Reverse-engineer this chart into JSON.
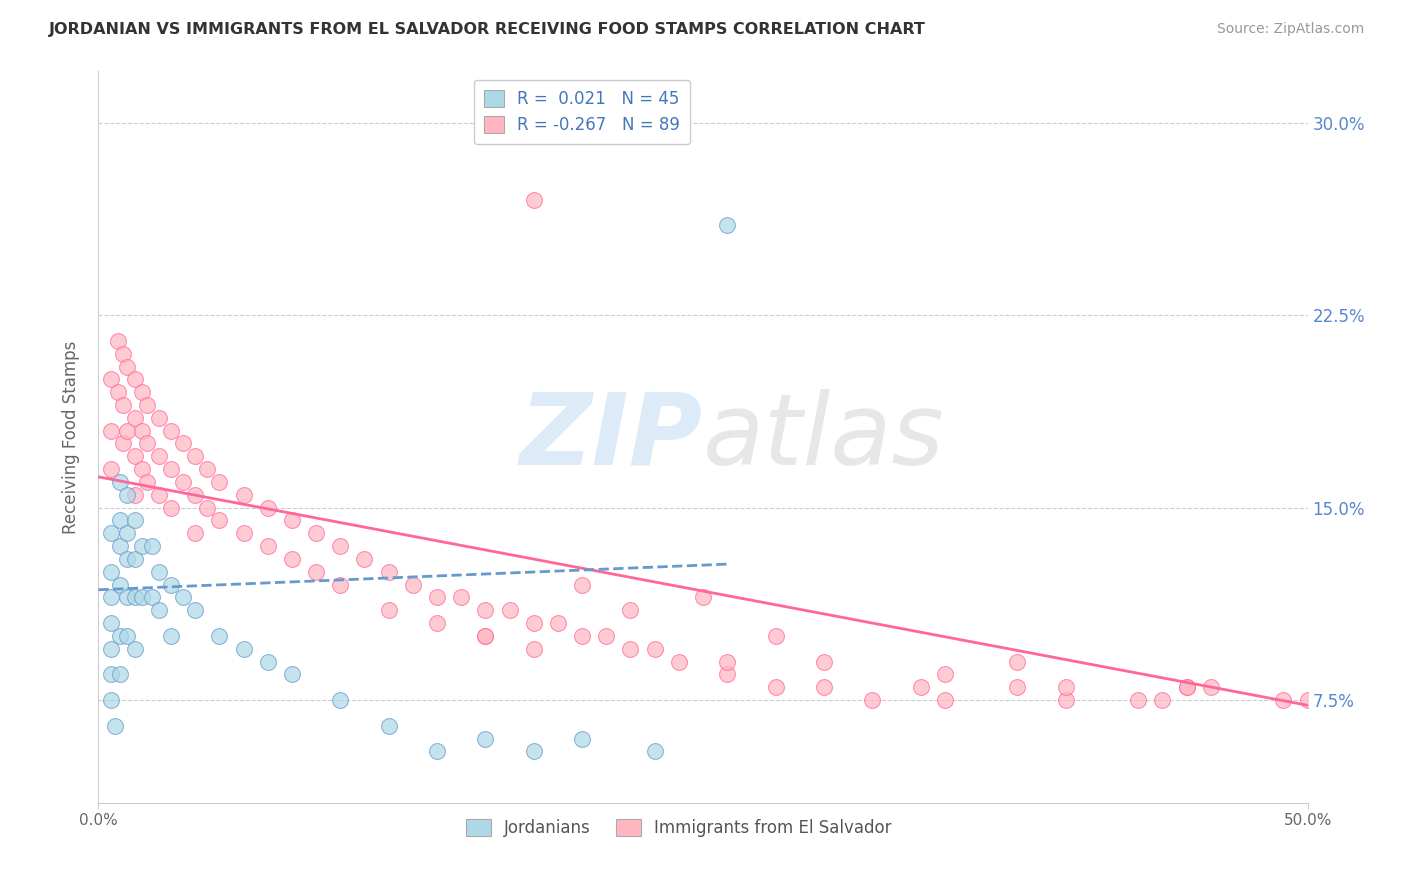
{
  "title": "JORDANIAN VS IMMIGRANTS FROM EL SALVADOR RECEIVING FOOD STAMPS CORRELATION CHART",
  "source": "Source: ZipAtlas.com",
  "ylabel": "Receiving Food Stamps",
  "xlim": [
    0.0,
    0.5
  ],
  "ylim": [
    0.035,
    0.32
  ],
  "right_ytick_labels": [
    "7.5%",
    "15.0%",
    "22.5%",
    "30.0%"
  ],
  "right_yticks": [
    0.075,
    0.15,
    0.225,
    0.3
  ],
  "legend_r1": "R =  0.021",
  "legend_n1": "N = 45",
  "legend_r2": "R = -0.267",
  "legend_n2": "N = 89",
  "color_jordanian": "#ADD8E6",
  "color_salvador": "#FFB6C1",
  "line_color_jordanian": "#6699CC",
  "line_color_salvador": "#FF6699",
  "background_color": "#FFFFFF",
  "grid_color": "#CCCCCC",
  "jordanian_trend_x": [
    0.0,
    0.26
  ],
  "jordanian_trend_y": [
    0.118,
    0.128
  ],
  "salvador_trend_x": [
    0.0,
    0.5
  ],
  "salvador_trend_y": [
    0.162,
    0.073
  ],
  "jordanian_scatter_x": [
    0.005,
    0.005,
    0.005,
    0.005,
    0.005,
    0.005,
    0.005,
    0.007,
    0.009,
    0.009,
    0.009,
    0.009,
    0.009,
    0.009,
    0.012,
    0.012,
    0.012,
    0.012,
    0.012,
    0.015,
    0.015,
    0.015,
    0.015,
    0.018,
    0.018,
    0.022,
    0.022,
    0.025,
    0.025,
    0.03,
    0.03,
    0.035,
    0.04,
    0.05,
    0.06,
    0.07,
    0.08,
    0.1,
    0.12,
    0.14,
    0.16,
    0.18,
    0.2,
    0.23,
    0.26
  ],
  "jordanian_scatter_y": [
    0.14,
    0.125,
    0.115,
    0.105,
    0.095,
    0.085,
    0.075,
    0.065,
    0.16,
    0.145,
    0.135,
    0.12,
    0.1,
    0.085,
    0.155,
    0.14,
    0.13,
    0.115,
    0.1,
    0.145,
    0.13,
    0.115,
    0.095,
    0.135,
    0.115,
    0.135,
    0.115,
    0.125,
    0.11,
    0.12,
    0.1,
    0.115,
    0.11,
    0.1,
    0.095,
    0.09,
    0.085,
    0.075,
    0.065,
    0.055,
    0.06,
    0.055,
    0.06,
    0.055,
    0.26
  ],
  "salvador_scatter_x": [
    0.005,
    0.005,
    0.005,
    0.008,
    0.008,
    0.01,
    0.01,
    0.01,
    0.012,
    0.012,
    0.015,
    0.015,
    0.015,
    0.015,
    0.018,
    0.018,
    0.018,
    0.02,
    0.02,
    0.02,
    0.025,
    0.025,
    0.025,
    0.03,
    0.03,
    0.03,
    0.035,
    0.035,
    0.04,
    0.04,
    0.04,
    0.045,
    0.045,
    0.05,
    0.05,
    0.06,
    0.06,
    0.07,
    0.07,
    0.08,
    0.08,
    0.09,
    0.09,
    0.1,
    0.1,
    0.11,
    0.12,
    0.12,
    0.13,
    0.14,
    0.14,
    0.15,
    0.16,
    0.16,
    0.17,
    0.18,
    0.18,
    0.19,
    0.2,
    0.21,
    0.22,
    0.23,
    0.24,
    0.26,
    0.28,
    0.3,
    0.32,
    0.35,
    0.38,
    0.4,
    0.43,
    0.46,
    0.49,
    0.16,
    0.26,
    0.34,
    0.44,
    0.2,
    0.3,
    0.4,
    0.5,
    0.22,
    0.35,
    0.45,
    0.28,
    0.18,
    0.38,
    0.25,
    0.45
  ],
  "salvador_scatter_y": [
    0.2,
    0.18,
    0.165,
    0.215,
    0.195,
    0.21,
    0.19,
    0.175,
    0.205,
    0.18,
    0.2,
    0.185,
    0.17,
    0.155,
    0.195,
    0.18,
    0.165,
    0.19,
    0.175,
    0.16,
    0.185,
    0.17,
    0.155,
    0.18,
    0.165,
    0.15,
    0.175,
    0.16,
    0.17,
    0.155,
    0.14,
    0.165,
    0.15,
    0.16,
    0.145,
    0.155,
    0.14,
    0.15,
    0.135,
    0.145,
    0.13,
    0.14,
    0.125,
    0.135,
    0.12,
    0.13,
    0.125,
    0.11,
    0.12,
    0.115,
    0.105,
    0.115,
    0.11,
    0.1,
    0.11,
    0.105,
    0.095,
    0.105,
    0.1,
    0.1,
    0.095,
    0.095,
    0.09,
    0.085,
    0.08,
    0.08,
    0.075,
    0.075,
    0.08,
    0.075,
    0.075,
    0.08,
    0.075,
    0.1,
    0.09,
    0.08,
    0.075,
    0.12,
    0.09,
    0.08,
    0.075,
    0.11,
    0.085,
    0.08,
    0.1,
    0.27,
    0.09,
    0.115,
    0.08
  ]
}
